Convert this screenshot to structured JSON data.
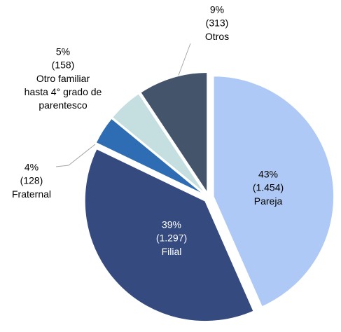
{
  "chart_data": {
    "type": "pie",
    "categories": [
      "Pareja",
      "Filial",
      "Fraternal",
      "Otro familiar hasta 4° grado de parentesco",
      "Otros"
    ],
    "values": [
      43,
      39,
      4,
      5,
      9
    ],
    "value_labels": [
      "43%",
      "39%",
      "4%",
      "5%",
      "9%"
    ],
    "counts": [
      1454,
      1297,
      128,
      158,
      313
    ],
    "count_labels": [
      "(1.454)",
      "(1.297)",
      "(128)",
      "(158)",
      "(313)"
    ],
    "colors": [
      "#aec9f5",
      "#354a7e",
      "#2e6db4",
      "#c5dfe0",
      "#44546a"
    ]
  }
}
